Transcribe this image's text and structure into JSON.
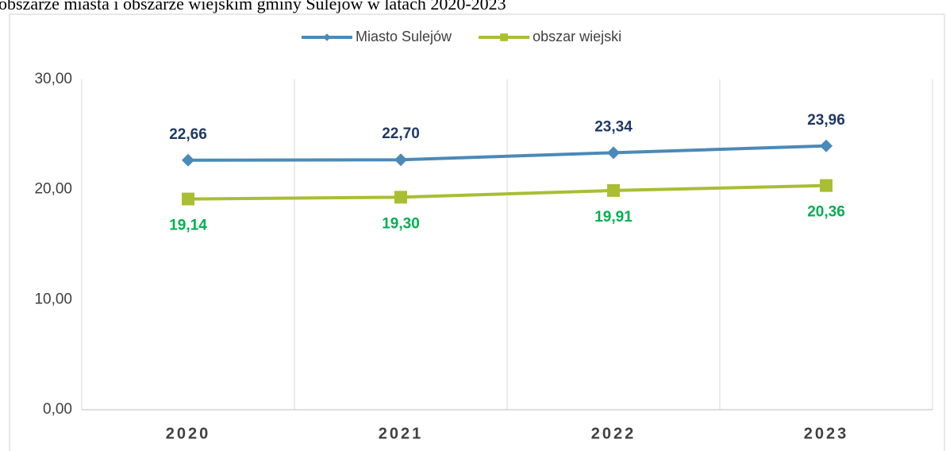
{
  "chart_data": {
    "type": "line",
    "title": "obszarze miasta i obszarze wiejskim gminy Sulejów w latach 2020-2023",
    "categories": [
      "2020",
      "2021",
      "2022",
      "2023"
    ],
    "series": [
      {
        "name": "Miasto Sulejów",
        "color": "#4a8ab8",
        "label_color": "#1f3864",
        "marker": "diamond",
        "values": [
          22.66,
          22.7,
          23.34,
          23.96
        ],
        "value_labels": [
          "22,66",
          "22,70",
          "23,34",
          "23,96"
        ]
      },
      {
        "name": "obszar wiejski",
        "color": "#a9be32",
        "label_color": "#00b050",
        "marker": "square",
        "values": [
          19.14,
          19.3,
          19.91,
          20.36
        ],
        "value_labels": [
          "19,14",
          "19,30",
          "19,91",
          "20,36"
        ]
      }
    ],
    "ylim": [
      0,
      30
    ],
    "yticks": [
      {
        "value": 0,
        "label": "0,00"
      },
      {
        "value": 10,
        "label": "10,00"
      },
      {
        "value": 20,
        "label": "20,00"
      },
      {
        "value": 30,
        "label": "30,00"
      }
    ],
    "grid": "vertical",
    "legend": "top"
  }
}
